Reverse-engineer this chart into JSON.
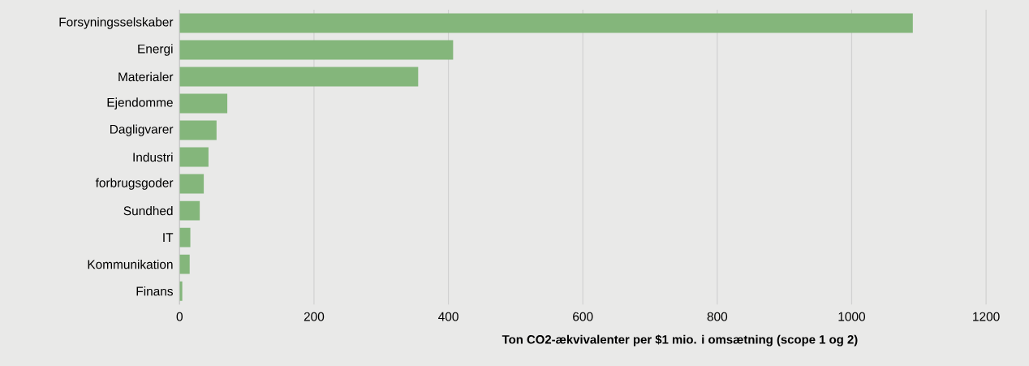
{
  "chart_data": {
    "type": "bar",
    "orientation": "horizontal",
    "categories": [
      "Forsyningsselskaber",
      "Energi",
      "Materialer",
      "Ejendomme",
      "Dagligvarer",
      "Industri",
      "forbrugsgoder",
      "Sundhed",
      "IT",
      "Kommunikation",
      "Finans"
    ],
    "values": [
      1091,
      407,
      355,
      71,
      55,
      43,
      36,
      30,
      16,
      15,
      4
    ],
    "color": "#84b67b",
    "xlim": [
      0,
      1200
    ],
    "xticks": [
      0,
      200,
      400,
      600,
      800,
      1000,
      1200
    ],
    "xlabel": "Ton CO2-ækvivalenter per $1 mio. i omsætning (scope 1 og 2)",
    "grid": "x"
  }
}
